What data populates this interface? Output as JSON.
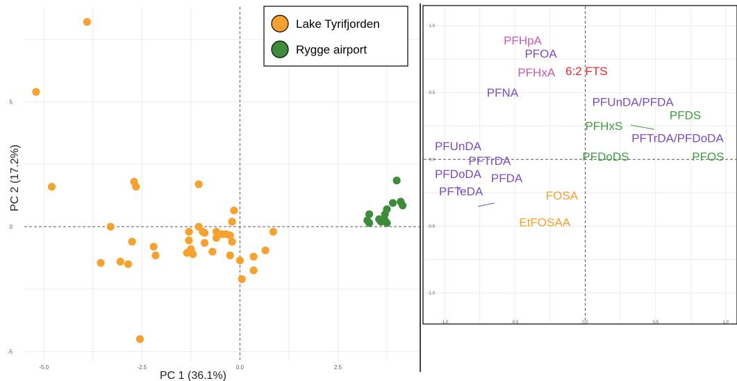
{
  "chart_data": [
    {
      "type": "scatter",
      "xlabel": "PC 1 (36.1%)",
      "ylabel": "PC 2 (17.2%)",
      "xlim": [
        -5.5,
        4.6
      ],
      "ylim": [
        -5.4,
        8.8
      ],
      "x_ticks": [
        "-5.0",
        "-2.5",
        "0.0",
        "2.5"
      ],
      "x_tick_values": [
        -5,
        -2.5,
        0,
        2.5
      ],
      "y_ticks": [
        "5",
        "0",
        "-5"
      ],
      "y_tick_values": [
        5,
        0,
        -5
      ],
      "grid": true,
      "legend_position": "top-right",
      "series": [
        {
          "name": "Lake Tyrifjorden",
          "color": "#f7a12f",
          "points": [
            [
              -3.9,
              8.2
            ],
            [
              -5.2,
              5.4
            ],
            [
              -4.8,
              1.6
            ],
            [
              -2.7,
              1.8
            ],
            [
              -2.65,
              1.6
            ],
            [
              -1.05,
              1.7
            ],
            [
              -3.3,
              0.0
            ],
            [
              -2.75,
              -0.6
            ],
            [
              -2.2,
              -0.8
            ],
            [
              -2.15,
              -1.15
            ],
            [
              -3.55,
              -1.45
            ],
            [
              -3.05,
              -1.4
            ],
            [
              -2.85,
              -1.5
            ],
            [
              -1.3,
              -0.2
            ],
            [
              -1.3,
              -0.55
            ],
            [
              -1.25,
              -0.9
            ],
            [
              -1.35,
              -1.05
            ],
            [
              -1.2,
              -1.1
            ],
            [
              -1.05,
              0.0
            ],
            [
              -0.95,
              -0.2
            ],
            [
              -0.9,
              -0.25
            ],
            [
              -0.9,
              -0.65
            ],
            [
              -0.6,
              -0.45
            ],
            [
              -0.45,
              -0.3
            ],
            [
              -0.35,
              -0.3
            ],
            [
              -0.25,
              -0.35
            ],
            [
              -0.2,
              -0.6
            ],
            [
              -0.7,
              -1.0
            ],
            [
              -0.25,
              -1.15
            ],
            [
              -0.15,
              0.65
            ],
            [
              -0.2,
              0.2
            ],
            [
              0.0,
              -1.35
            ],
            [
              0.05,
              -2.1
            ],
            [
              0.35,
              -1.2
            ],
            [
              0.35,
              -1.75
            ],
            [
              0.65,
              -0.95
            ],
            [
              0.85,
              -0.2
            ],
            [
              -2.55,
              -4.5
            ],
            [
              -0.6,
              -0.2
            ]
          ]
        },
        {
          "name": "Rygge airport",
          "color": "#3d8c3a",
          "points": [
            [
              4.0,
              1.85
            ],
            [
              3.75,
              0.7
            ],
            [
              3.7,
              0.5
            ],
            [
              3.3,
              0.5
            ],
            [
              3.25,
              0.25
            ],
            [
              3.3,
              0.15
            ],
            [
              3.55,
              0.3
            ],
            [
              3.6,
              0.2
            ],
            [
              3.7,
              0.25
            ],
            [
              3.75,
              0.15
            ],
            [
              3.9,
              0.95
            ],
            [
              4.1,
              1.0
            ],
            [
              4.15,
              0.85
            ]
          ]
        }
      ]
    },
    {
      "type": "scatter",
      "subtype": "loading-labels",
      "xlim": [
        -1.05,
        1.08
      ],
      "ylim": [
        -1.2,
        1.13
      ],
      "x_ticks": [
        "-1.0",
        "-0.5",
        "0.0",
        "0.5",
        "1.0"
      ],
      "x_tick_values": [
        -1,
        -0.5,
        0,
        0.5,
        1
      ],
      "y_ticks": [
        "1.0",
        "0.5",
        "0.0",
        "-0.5",
        "-1.0"
      ],
      "y_tick_values": [
        1,
        0.5,
        0,
        -0.5,
        -1
      ],
      "grid": true,
      "labels": [
        {
          "text": "PFHpA",
          "x": -0.58,
          "y": 0.86,
          "color": "#c65ab4"
        },
        {
          "text": "PFOA",
          "x": -0.43,
          "y": 0.76,
          "color": "#7b4bbd"
        },
        {
          "text": "PFHxA",
          "x": -0.48,
          "y": 0.62,
          "color": "#c65ab4"
        },
        {
          "text": "6:2 FTS",
          "x": -0.14,
          "y": 0.63,
          "color": "#e8262a"
        },
        {
          "text": "PFNA",
          "x": -0.7,
          "y": 0.47,
          "color": "#7b4bbd"
        },
        {
          "text": "PFUnDA/PFDA",
          "x": 0.05,
          "y": 0.4,
          "color": "#7b4bbd"
        },
        {
          "text": "PFDS",
          "x": 0.6,
          "y": 0.3,
          "color": "#3c9c3c"
        },
        {
          "text": "PFHxS",
          "x": 0.0,
          "y": 0.22,
          "color": "#3c9c3c"
        },
        {
          "text": "PFTrDA/PFDoDA",
          "x": 0.33,
          "y": 0.13,
          "color": "#7b4bbd"
        },
        {
          "text": "PFUnDA",
          "x": -1.07,
          "y": 0.07,
          "color": "#7b4bbd"
        },
        {
          "text": "PFTrDA",
          "x": -0.83,
          "y": -0.04,
          "color": "#7b4bbd"
        },
        {
          "text": "PFDoDS",
          "x": -0.02,
          "y": -0.01,
          "color": "#3c9c3c"
        },
        {
          "text": "PFOS",
          "x": 0.76,
          "y": -0.01,
          "color": "#3c9c3c"
        },
        {
          "text": "PFDoDA",
          "x": -1.07,
          "y": -0.14,
          "color": "#7b4bbd"
        },
        {
          "text": "PFDA",
          "x": -0.67,
          "y": -0.17,
          "color": "#7b4bbd"
        },
        {
          "text": "PFTeDA",
          "x": -1.04,
          "y": -0.27,
          "color": "#7b4bbd"
        },
        {
          "text": "FOSA",
          "x": -0.28,
          "y": -0.3,
          "color": "#f5a02b"
        },
        {
          "text": "EtFOSAA",
          "x": -0.47,
          "y": -0.5,
          "color": "#f5a02b"
        }
      ]
    }
  ]
}
